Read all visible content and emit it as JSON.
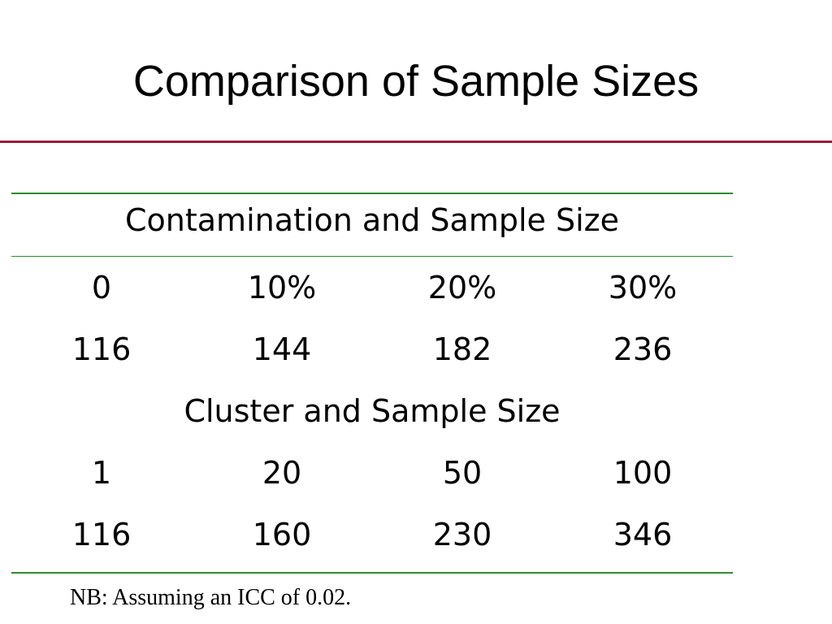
{
  "slide": {
    "title": "Comparison of Sample Sizes",
    "footnote": "NB: Assuming an ICC of 0.02."
  },
  "colors": {
    "title_rule": "#9b1b3a",
    "table_rule": "#2e8b2e"
  },
  "table": {
    "sections": [
      {
        "heading": "Contamination and Sample Size",
        "header_row": [
          "0",
          "10%",
          "20%",
          "30%"
        ],
        "value_row": [
          "116",
          "144",
          "182",
          "236"
        ]
      },
      {
        "heading": "Cluster and Sample Size",
        "header_row": [
          "1",
          "20",
          "50",
          "100"
        ],
        "value_row": [
          "116",
          "160",
          "230",
          "346"
        ]
      }
    ]
  }
}
